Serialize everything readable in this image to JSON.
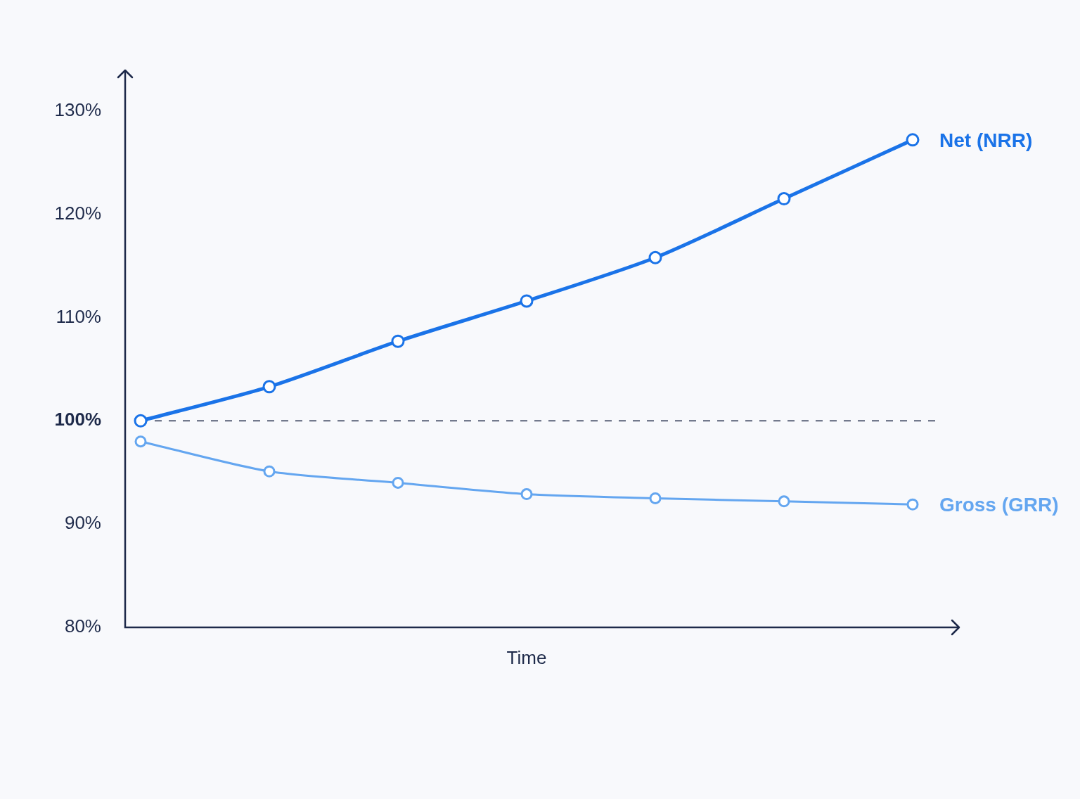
{
  "chart_data": {
    "type": "line",
    "xlabel": "Time",
    "categories": [
      null,
      null,
      null,
      null,
      null,
      null,
      null
    ],
    "series": [
      {
        "name": "Net (NRR)",
        "color": "#1a73e8",
        "values": [
          100,
          103.3,
          107.7,
          111.6,
          115.8,
          121.5,
          127.2
        ]
      },
      {
        "name": "Gross (GRR)",
        "color": "#64a6f0",
        "values": [
          98.0,
          95.1,
          94.0,
          92.9,
          92.5,
          92.2,
          91.9
        ]
      }
    ],
    "ylim": [
      80,
      134
    ],
    "yticks": [
      {
        "value": 80,
        "label": "80%"
      },
      {
        "value": 90,
        "label": "90%"
      },
      {
        "value": 100,
        "label": "100%"
      },
      {
        "value": 110,
        "label": "110%"
      },
      {
        "value": 120,
        "label": "120%"
      },
      {
        "value": 130,
        "label": "130%"
      }
    ],
    "ref_lines": [
      {
        "axis": "y",
        "value": 100,
        "color": "#5a6278",
        "line_style": "dashed"
      }
    ],
    "grid": false,
    "legend": false,
    "marker": "circle",
    "line_style": "solid",
    "tick_labels": "y"
  }
}
